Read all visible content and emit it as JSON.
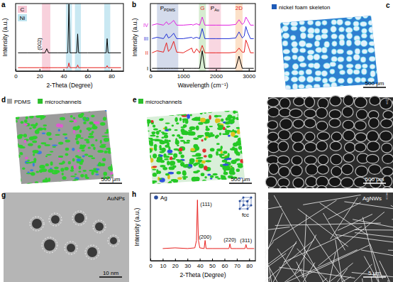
{
  "chart_data": [
    {
      "panel": "a",
      "type": "line",
      "xlabel": "2-Theta (Degree)",
      "ylabel": "Intensity (a.u.)",
      "xlim": [
        0,
        90
      ],
      "xticks": [
        0,
        20,
        40,
        60,
        80
      ],
      "ylim": [
        0,
        100
      ],
      "tick_labels": "x",
      "legend": "top-left",
      "x": [
        2,
        10,
        20,
        24.5,
        26,
        27.5,
        35,
        43.6,
        44.5,
        45.4,
        51,
        51.8,
        52.6,
        60,
        75.6,
        76.4,
        77.2,
        88
      ],
      "series": [
        {
          "color": "#000000",
          "values": [
            27,
            27,
            27,
            27,
            33,
            27,
            27,
            27,
            99,
            27,
            27,
            55,
            27,
            27,
            27,
            48,
            27,
            27
          ]
        },
        {
          "color": "#e8201e",
          "values": [
            5,
            5,
            5,
            5,
            5,
            5,
            5,
            5,
            12,
            5,
            5,
            9,
            5,
            5,
            5,
            8,
            5,
            5
          ]
        }
      ],
      "band_groups": [
        {
          "label": "C",
          "color": "#f7c9d6",
          "ranges": [
            [
              22,
              29
            ]
          ]
        },
        {
          "label": "Ni",
          "color": "#bfe4f0",
          "ranges": [
            [
              42,
              47
            ],
            [
              49.5,
              54.5
            ],
            [
              74,
              79
            ]
          ]
        }
      ],
      "annotations": [
        {
          "text": "(002)",
          "x": 26
        }
      ]
    },
    {
      "panel": "b",
      "type": "line",
      "xlabel": "Wavelength (cm⁻¹)",
      "ylabel": "Intensity (a.u.)",
      "xlim": [
        0,
        3200
      ],
      "xticks": [
        0,
        1000,
        2000,
        3000
      ],
      "ylim": [
        0,
        100
      ],
      "tick_labels": "x",
      "x": [
        50,
        200,
        300,
        400,
        490,
        550,
        620,
        710,
        800,
        1000,
        1260,
        1300,
        1340,
        1410,
        1500,
        1580,
        1660,
        1800,
        2000,
        2400,
        2600,
        2700,
        2800,
        2860,
        2910,
        2960,
        3050,
        3150
      ],
      "series": [
        {
          "name": "I",
          "color": "#000000",
          "values": [
            4,
            4,
            4,
            4,
            4,
            4,
            4,
            4,
            4,
            4,
            4,
            4,
            4,
            4,
            4,
            30,
            4,
            4,
            4,
            4,
            4,
            22,
            4,
            4,
            4,
            4,
            4,
            4
          ]
        },
        {
          "name": "II",
          "color": "#e8201e",
          "values": [
            27,
            30,
            29,
            28,
            42,
            29,
            33,
            44,
            28,
            27,
            34,
            28,
            27,
            33,
            27,
            38,
            27,
            27,
            27,
            27,
            28,
            34,
            28,
            28,
            46,
            40,
            27,
            27
          ]
        },
        {
          "name": "III",
          "color": "#1f2fd6",
          "values": [
            48,
            50,
            49,
            48,
            55,
            49,
            51,
            56,
            48,
            48,
            50,
            48,
            49,
            50,
            48,
            63,
            48,
            48,
            48,
            48,
            49,
            58,
            49,
            52,
            66,
            58,
            48,
            48
          ]
        },
        {
          "name": "IV",
          "color": "#e020e0",
          "values": [
            68,
            70,
            69,
            68,
            73,
            69,
            71,
            75,
            68,
            68,
            69,
            68,
            69,
            70,
            68,
            80,
            68,
            68,
            68,
            68,
            69,
            76,
            69,
            72,
            80,
            76,
            68,
            68
          ]
        }
      ],
      "band_groups": [
        {
          "label": "P",
          "sub": "PDMS",
          "color": "#cdd5e8",
          "ranges": [
            [
              200,
              850
            ]
          ]
        },
        {
          "label": "G",
          "color": "#cfe9c8",
          "ranges": [
            [
              1480,
              1690
            ]
          ]
        },
        {
          "label": "P",
          "sub": "Au",
          "color": "#f8d0dc",
          "ranges": [
            [
              1780,
              2150
            ]
          ]
        },
        {
          "label": "2D",
          "color": "#fbdcc0",
          "ranges": [
            [
              2590,
              2810
            ]
          ]
        }
      ]
    },
    {
      "panel": "h",
      "type": "line",
      "xlabel": "2-Theta (Degree)",
      "ylabel": "Intensity (a.u.)",
      "xlim": [
        0,
        85
      ],
      "xticks": [
        0,
        10,
        20,
        30,
        40,
        50,
        60,
        70,
        80
      ],
      "ylim": [
        0,
        100
      ],
      "tick_labels": "x",
      "legend": "top-left",
      "x": [
        10,
        20,
        30,
        36,
        37.3,
        38.1,
        38.9,
        40,
        43.5,
        44.3,
        45.1,
        50,
        63.6,
        64.4,
        65.2,
        70,
        76.6,
        77.4,
        78.2,
        84
      ],
      "series": [
        {
          "name": "Ag",
          "color": "#e8201e",
          "values": [
            18,
            19,
            18,
            19,
            30,
            90,
            30,
            19,
            18,
            30,
            18,
            18,
            18,
            25,
            18,
            18,
            18,
            24,
            18,
            18
          ]
        }
      ],
      "annotations": [
        {
          "text": "(111)",
          "x": 38.1
        },
        {
          "text": "(200)",
          "x": 44.3
        },
        {
          "text": "(220)",
          "x": 64.4
        },
        {
          "text": "(311)",
          "x": 77.4
        },
        {
          "text": "fcc"
        }
      ]
    }
  ],
  "images": [
    {
      "panel": "c",
      "legend": [
        {
          "label": "nickel foam skeleton",
          "color": "#1e5bb8"
        }
      ],
      "scale_bar": "500 μm"
    },
    {
      "panel": "d",
      "legend": [
        {
          "label": "PDMS",
          "color": "#a6a6a6"
        },
        {
          "label": "microchannels",
          "color": "#2dbe2d"
        }
      ],
      "scale_bar": "500 μm"
    },
    {
      "panel": "e",
      "legend": [
        {
          "label": "microchannels",
          "color": "#2dbe2d"
        }
      ],
      "scale_bar": "500 μm"
    },
    {
      "panel": "f",
      "scale_bar": "500 μm"
    },
    {
      "panel": "g",
      "label": "AuNPs",
      "scale_bar": "10 nm"
    },
    {
      "panel": "i",
      "label": "AgNWs",
      "scale_bar": "5 μm"
    }
  ]
}
